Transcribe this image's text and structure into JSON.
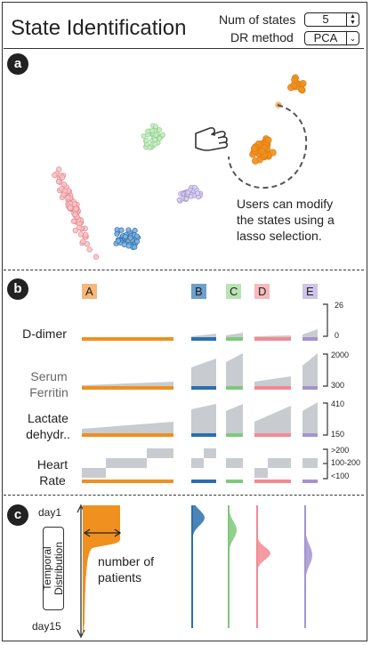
{
  "header": {
    "title": "State Identification",
    "num_states_label": "Num of states",
    "num_states_value": "5",
    "dr_method_label": "DR method",
    "dr_method_value": "PCA"
  },
  "sections": {
    "a": "a",
    "b": "b",
    "c": "c"
  },
  "panel_a": {
    "annotation_lines": [
      "Users can modify",
      "the states using a",
      "lasso selection."
    ],
    "icon": "hand-pointer-icon"
  },
  "panel_b": {
    "states": [
      {
        "id": "A",
        "color": "#f0a259"
      },
      {
        "id": "B",
        "color": "#3a7ab5"
      },
      {
        "id": "C",
        "color": "#8fd18a"
      },
      {
        "id": "D",
        "color": "#f2a0a6"
      },
      {
        "id": "E",
        "color": "#b3a6d8"
      }
    ],
    "rows": [
      {
        "label_lines": [
          "D-dimer"
        ],
        "ticks": [
          "26",
          "0"
        ]
      },
      {
        "label_lines": [
          "Serum",
          "Ferritin"
        ],
        "ticks": [
          "2000",
          "300"
        ]
      },
      {
        "label_lines": [
          "Lactate",
          "dehydr.."
        ],
        "ticks": [
          "410",
          "150"
        ]
      },
      {
        "label_lines": [
          "Heart",
          "Rate"
        ],
        "ticks": [
          ">200",
          "100-200",
          "<100"
        ]
      }
    ]
  },
  "panel_c": {
    "day_start": "day1",
    "day_end": "day15",
    "temporal_label_lines": [
      "Temporal",
      "Distribution"
    ],
    "annotation_lines": [
      "number of",
      "patients"
    ]
  },
  "colors": {
    "orange": "#f0901f",
    "blue": "#2c6fad",
    "green": "#7ec97a",
    "pink": "#f28a93",
    "purple": "#a394cf",
    "gray": "#c8ccd0"
  }
}
